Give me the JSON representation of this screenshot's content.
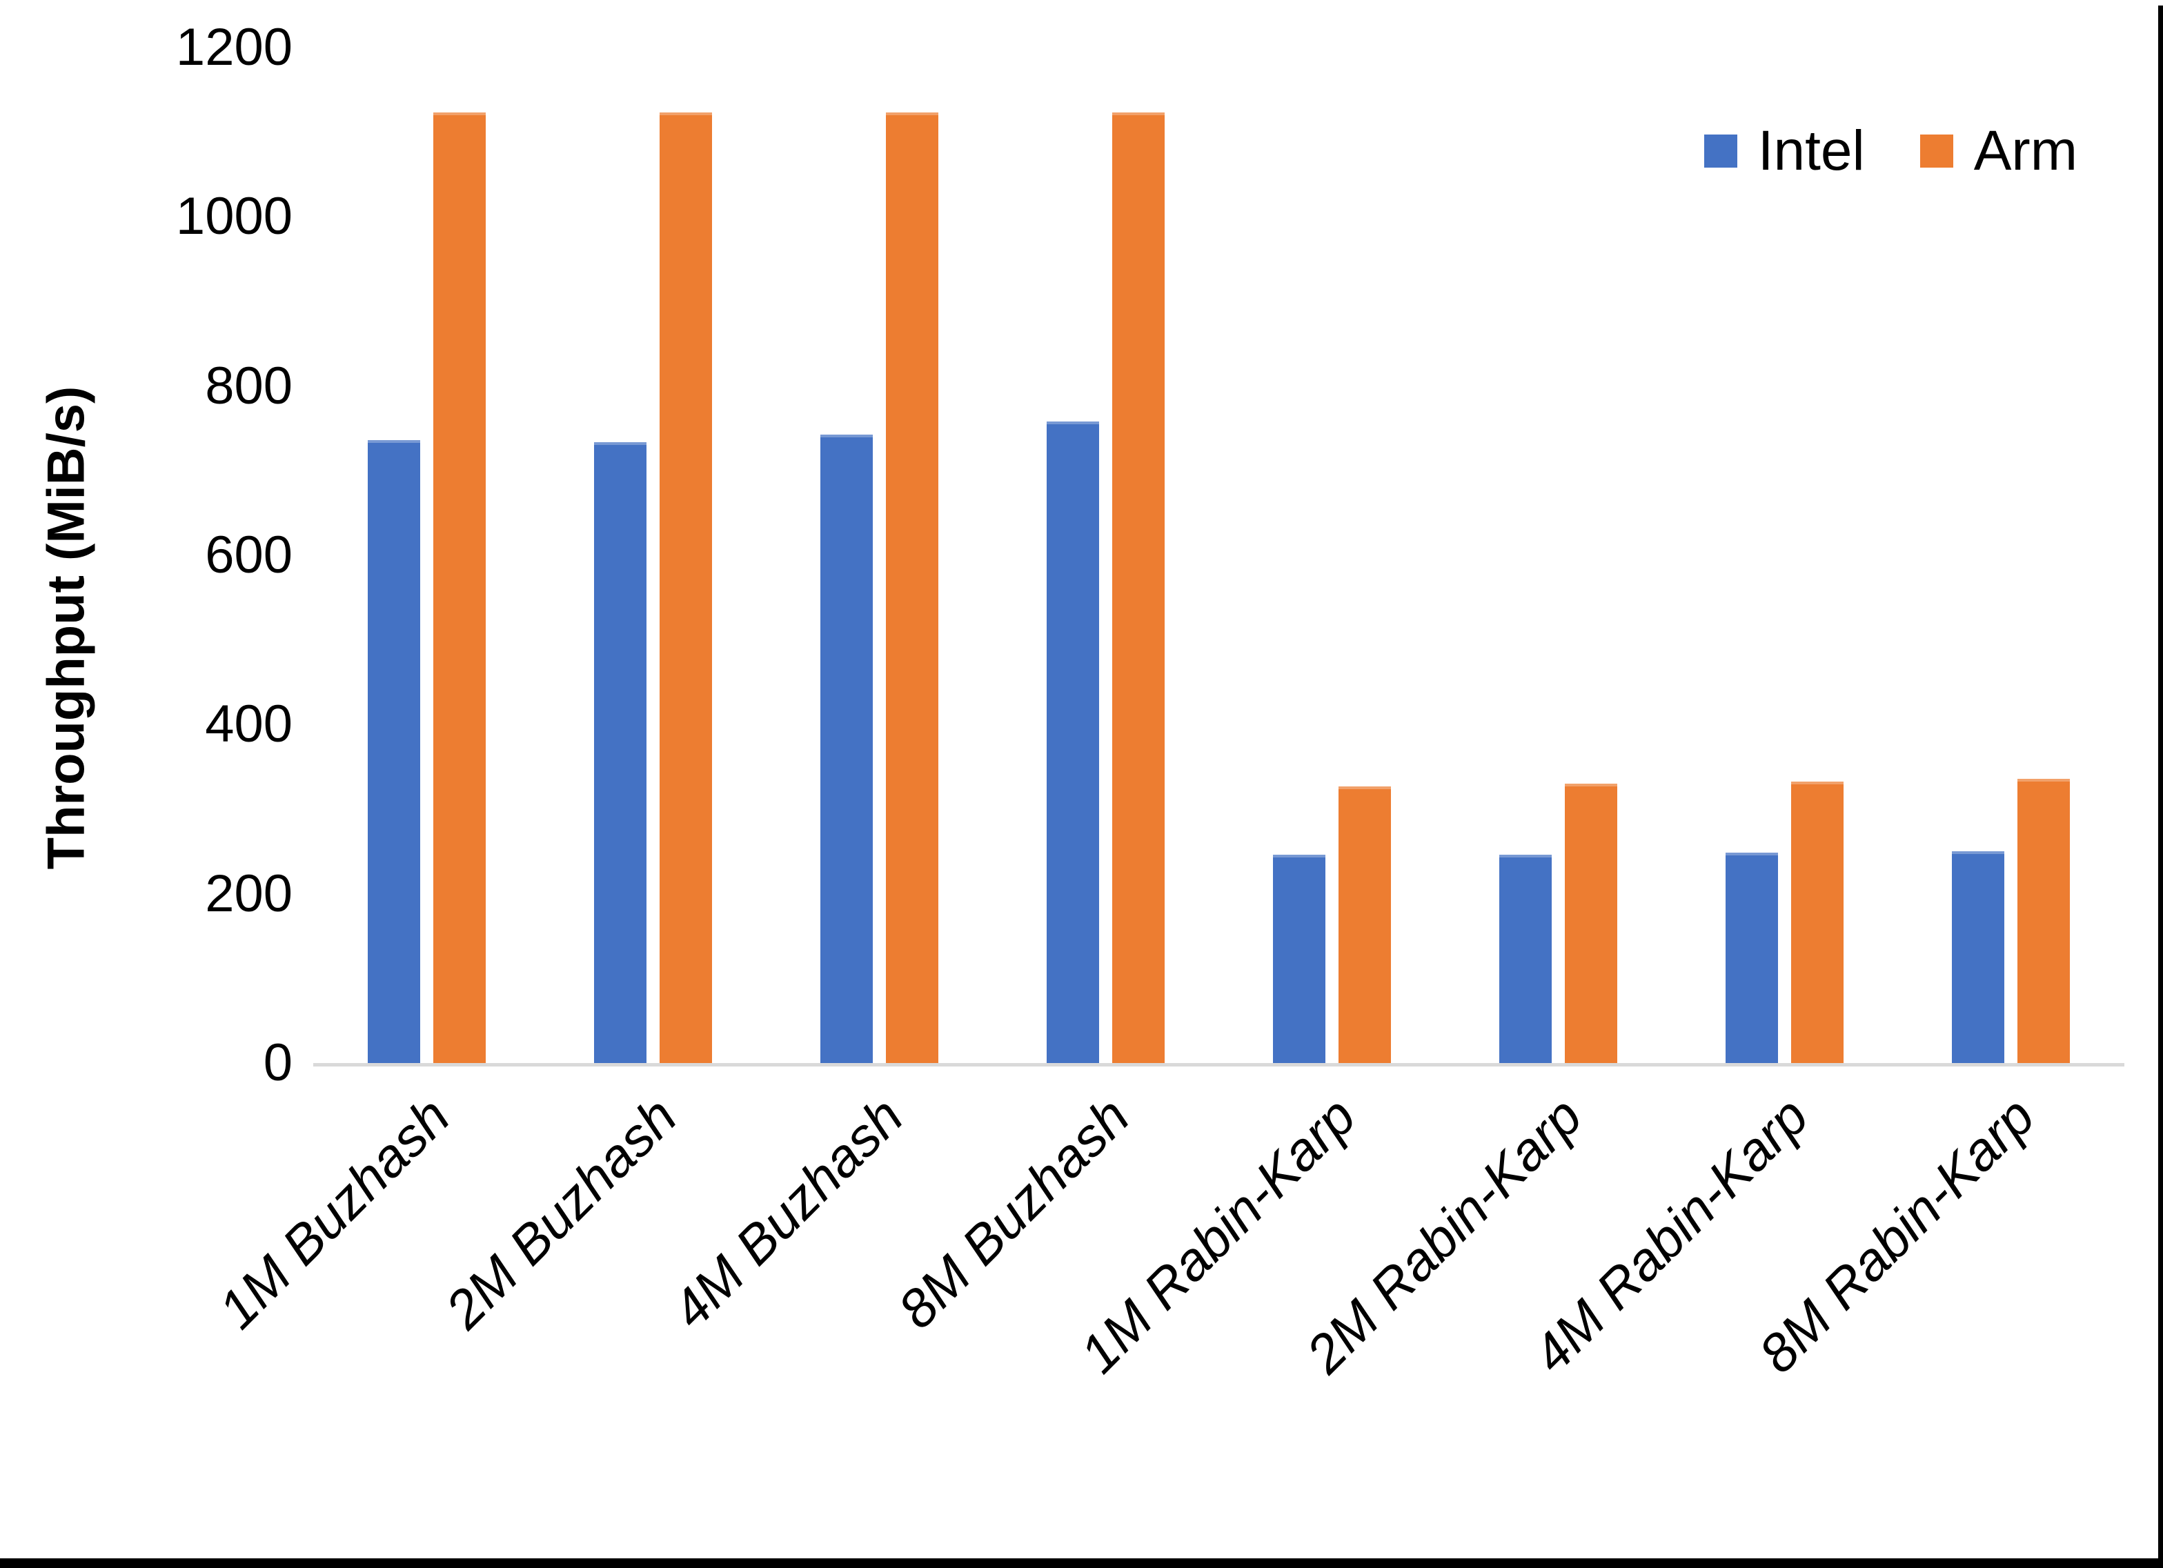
{
  "chart_data": {
    "type": "bar",
    "title": "",
    "xlabel": "",
    "ylabel": "Throughput (MiB/s)",
    "ylim": [
      0,
      1200
    ],
    "yticks": [
      0,
      200,
      400,
      600,
      800,
      1000,
      1200
    ],
    "grid": false,
    "legend_position": "top-right",
    "categories": [
      "1M Buzhash",
      "2M Buzhash",
      "4M Buzhash",
      "8M Buzhash",
      "1M Rabin-Karp",
      "2M Rabin-Karp",
      "4M Rabin-Karp",
      "8M Rabin-Karp"
    ],
    "series": [
      {
        "name": "Intel",
        "color": "#4472C4",
        "values": [
          736,
          734,
          743,
          758,
          246,
          246,
          249,
          250
        ]
      },
      {
        "name": "Arm",
        "color": "#ED7D31",
        "values": [
          1123,
          1123,
          1123,
          1123,
          327,
          330,
          333,
          336
        ]
      }
    ]
  },
  "axes": {
    "y_title": "Throughput (MiB/s)"
  },
  "colors": {
    "intel": "#4472C4",
    "arm": "#ED7D31",
    "axis_line": "#D9D9D9",
    "text": "#000000",
    "frame": "#000000",
    "background": "#FFFFFF"
  }
}
